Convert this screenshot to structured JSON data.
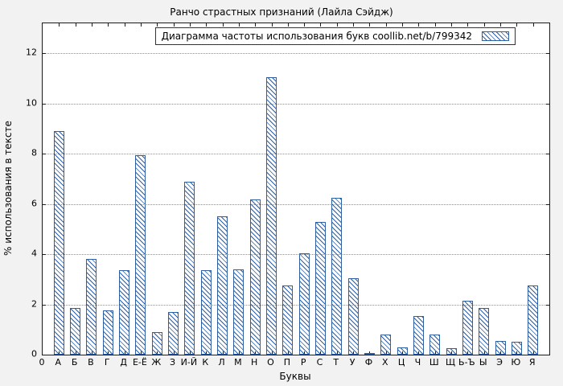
{
  "chart_data": {
    "type": "bar",
    "title": "Ранчо страстных признаний (Лайла Сэйдж)",
    "legend": "Диаграмма частоты использования букв coollib.net/b/799342",
    "legend_position": "top-right",
    "xlabel": "Буквы",
    "ylabel": "% использования в тексте",
    "origin_tick": "0",
    "categories": [
      "А",
      "Б",
      "В",
      "Г",
      "Д",
      "Е-Ё",
      "Ж",
      "З",
      "И-Й",
      "К",
      "Л",
      "М",
      "Н",
      "О",
      "П",
      "Р",
      "С",
      "Т",
      "У",
      "Ф",
      "Х",
      "Ц",
      "Ч",
      "Ш",
      "Щ",
      "Ь-Ъ",
      "Ы",
      "Э",
      "Ю",
      "Я"
    ],
    "values": [
      8.9,
      1.85,
      3.8,
      1.75,
      3.35,
      7.95,
      0.9,
      1.7,
      6.9,
      3.35,
      5.5,
      3.4,
      6.2,
      11.05,
      2.75,
      4.05,
      5.3,
      6.25,
      3.05,
      0.05,
      0.8,
      0.3,
      1.55,
      0.8,
      0.25,
      2.15,
      1.85,
      0.55,
      0.5,
      2.75
    ],
    "y_ticks": [
      0,
      2,
      4,
      6,
      8,
      10,
      12
    ],
    "ylim": [
      0,
      13.2
    ],
    "grid": "horizontal-dotted",
    "bar_color": "#2e5fa3",
    "plot_background": "#ffffff",
    "figure_background": "#f2f2f2"
  }
}
